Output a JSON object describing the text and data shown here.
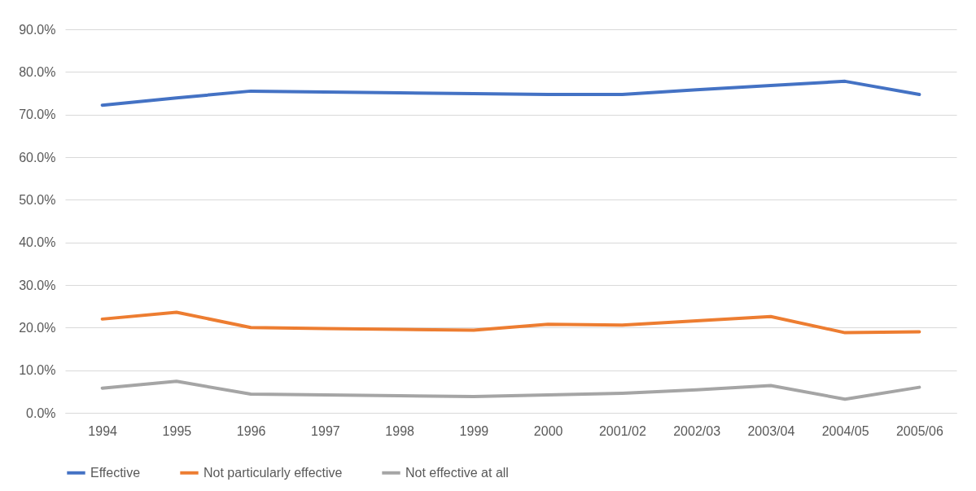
{
  "chart_data": {
    "type": "line",
    "categories": [
      "1994",
      "1995",
      "1996",
      "1997",
      "1998",
      "1999",
      "2000",
      "2001/02",
      "2002/03",
      "2003/04",
      "2004/05",
      "2005/06"
    ],
    "series": [
      {
        "name": "Effective",
        "color": "#4472c4",
        "values": [
          72.2,
          73.9,
          75.5,
          75.3,
          75.1,
          74.9,
          74.7,
          74.7,
          75.8,
          76.8,
          77.8,
          74.7
        ]
      },
      {
        "name": "Not particularly effective",
        "color": "#ed7d31",
        "values": [
          22.0,
          23.6,
          20.0,
          19.8,
          19.6,
          19.4,
          20.8,
          20.6,
          21.6,
          22.6,
          18.8,
          19.0
        ]
      },
      {
        "name": "Not effective at all",
        "color": "#a5a5a5",
        "values": [
          5.8,
          7.4,
          4.4,
          4.2,
          4.0,
          3.8,
          4.2,
          4.6,
          5.4,
          6.4,
          3.2,
          6.0
        ]
      }
    ],
    "ylim": [
      0,
      90
    ],
    "yticks": [
      {
        "value": 0,
        "label": "0.0%"
      },
      {
        "value": 10,
        "label": "10.0%"
      },
      {
        "value": 20,
        "label": "20.0%"
      },
      {
        "value": 30,
        "label": "30.0%"
      },
      {
        "value": 40,
        "label": "40.0%"
      },
      {
        "value": 50,
        "label": "50.0%"
      },
      {
        "value": 60,
        "label": "60.0%"
      },
      {
        "value": 70,
        "label": "70.0%"
      },
      {
        "value": 80,
        "label": "80.0%"
      },
      {
        "value": 90,
        "label": "90.0%"
      }
    ],
    "grid": "y",
    "legend": "bottom",
    "marker": "none",
    "line_style": "solid"
  }
}
